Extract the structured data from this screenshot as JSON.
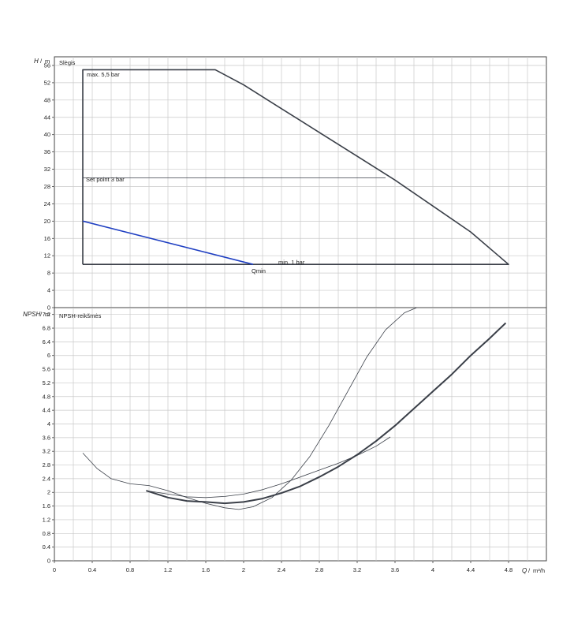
{
  "chart_data": [
    {
      "type": "line",
      "title": "Slėgis",
      "ylabel_symbol": "H",
      "ylabel_unit": "m",
      "ylim": [
        0,
        58
      ],
      "yticks": [
        0,
        4,
        8,
        12,
        16,
        20,
        24,
        28,
        32,
        36,
        40,
        44,
        48,
        52,
        56
      ],
      "xlim": [
        0,
        5.2
      ],
      "grid": true,
      "annotations": {
        "max": "max. 5,5 bar",
        "setpoint": "Set point 3 bar",
        "min": "min. 1 bar",
        "qmin": "Qmin"
      },
      "series": [
        {
          "role": "operating-envelope",
          "color": "#3a3f48",
          "points": [
            [
              0.3,
              10
            ],
            [
              0.3,
              55
            ],
            [
              1.7,
              55
            ],
            [
              2.0,
              51.5
            ],
            [
              2.4,
              46
            ],
            [
              2.8,
              40.5
            ],
            [
              3.2,
              35
            ],
            [
              3.6,
              29.5
            ],
            [
              4.0,
              23.5
            ],
            [
              4.4,
              17.5
            ],
            [
              4.8,
              10
            ],
            [
              0.3,
              10
            ]
          ]
        },
        {
          "role": "set-point-line",
          "color": "#3a3f48",
          "points": [
            [
              0.3,
              30
            ],
            [
              3.5,
              30
            ]
          ]
        },
        {
          "role": "qmin-line",
          "color": "#1f3fc2",
          "points": [
            [
              0.3,
              20
            ],
            [
              2.1,
              10
            ]
          ]
        }
      ]
    },
    {
      "type": "line",
      "title": "NPSH-reikšmės",
      "ylabel_symbol": "NPSH",
      "ylabel_unit": "m",
      "xlabel_symbol": "Q",
      "xlabel_unit": "m³/h",
      "ylim": [
        0,
        7.4
      ],
      "yticks": [
        0,
        0.4,
        0.8,
        1.2,
        1.6,
        2,
        2.4,
        2.8,
        3.2,
        3.6,
        4,
        4.4,
        4.8,
        5.2,
        5.6,
        6,
        6.4,
        6.8,
        7.2
      ],
      "xlim": [
        0,
        5.2
      ],
      "xticks": [
        0,
        0.4,
        0.8,
        1.2,
        1.6,
        2,
        2.4,
        2.8,
        3.2,
        3.6,
        4,
        4.4,
        4.8
      ],
      "grid": true,
      "series": [
        {
          "role": "npsh-main",
          "color": "#3a3f48",
          "width": 2,
          "points": [
            [
              0.97,
              2.05
            ],
            [
              1.2,
              1.85
            ],
            [
              1.4,
              1.75
            ],
            [
              1.6,
              1.72
            ],
            [
              1.8,
              1.68
            ],
            [
              2.0,
              1.72
            ],
            [
              2.2,
              1.82
            ],
            [
              2.4,
              1.98
            ],
            [
              2.6,
              2.18
            ],
            [
              2.8,
              2.45
            ],
            [
              3.0,
              2.75
            ],
            [
              3.2,
              3.1
            ],
            [
              3.4,
              3.5
            ],
            [
              3.6,
              3.95
            ],
            [
              3.8,
              4.45
            ],
            [
              4.0,
              4.95
            ],
            [
              4.2,
              5.45
            ],
            [
              4.4,
              6.0
            ],
            [
              4.6,
              6.5
            ],
            [
              4.77,
              6.95
            ]
          ]
        },
        {
          "role": "npsh-thin-a",
          "color": "#3a3f48",
          "width": 0.8,
          "points": [
            [
              0.3,
              3.15
            ],
            [
              0.45,
              2.7
            ],
            [
              0.6,
              2.4
            ],
            [
              0.8,
              2.25
            ],
            [
              1.0,
              2.2
            ],
            [
              1.2,
              2.05
            ],
            [
              1.4,
              1.85
            ],
            [
              1.6,
              1.68
            ],
            [
              1.8,
              1.55
            ],
            [
              1.95,
              1.5
            ],
            [
              2.1,
              1.58
            ],
            [
              2.3,
              1.85
            ],
            [
              2.5,
              2.35
            ],
            [
              2.7,
              3.05
            ],
            [
              2.9,
              3.95
            ],
            [
              3.1,
              4.95
            ],
            [
              3.3,
              5.95
            ],
            [
              3.5,
              6.75
            ],
            [
              3.7,
              7.25
            ],
            [
              3.83,
              7.4
            ]
          ]
        },
        {
          "role": "npsh-thin-b",
          "color": "#3a3f48",
          "width": 0.8,
          "points": [
            [
              0.97,
              2.05
            ],
            [
              1.2,
              1.95
            ],
            [
              1.4,
              1.87
            ],
            [
              1.6,
              1.85
            ],
            [
              1.8,
              1.88
            ],
            [
              2.0,
              1.95
            ],
            [
              2.2,
              2.08
            ],
            [
              2.4,
              2.25
            ],
            [
              2.6,
              2.45
            ],
            [
              2.8,
              2.65
            ],
            [
              3.0,
              2.85
            ],
            [
              3.2,
              3.08
            ],
            [
              3.4,
              3.35
            ],
            [
              3.55,
              3.62
            ]
          ]
        }
      ]
    }
  ]
}
